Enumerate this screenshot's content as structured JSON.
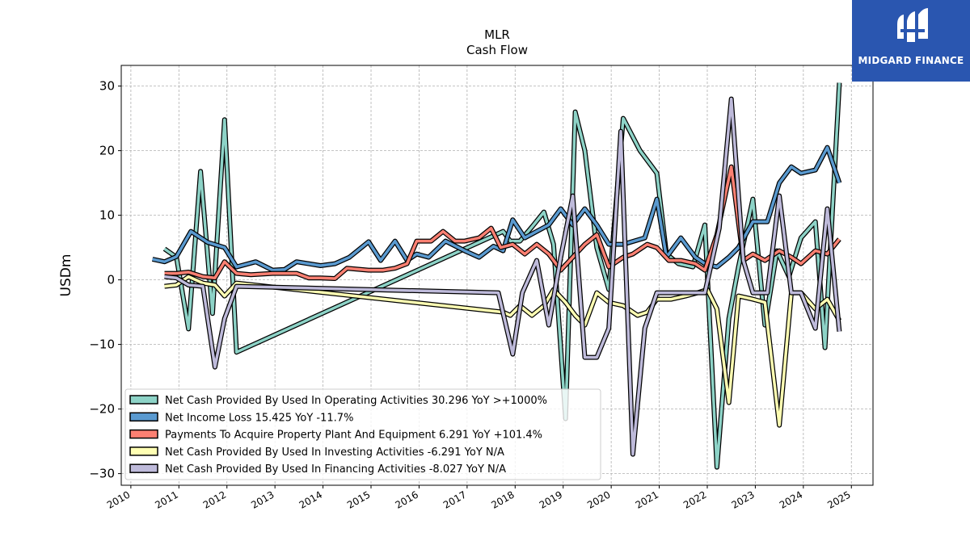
{
  "brand": {
    "name": "MIDGARD FINANCE",
    "logo_icon": "midgard-logo-icon",
    "color": "#2a56b0"
  },
  "chart_data": {
    "type": "line",
    "title": "MLR",
    "subtitle": "Cash Flow",
    "xlabel": "",
    "ylabel": "USDm",
    "xlim": [
      2009.8,
      2025.45
    ],
    "ylim": [
      -31.8,
      33.2
    ],
    "xticks": [
      "2010",
      "2011",
      "2012",
      "2013",
      "2014",
      "2015",
      "2016",
      "2017",
      "2018",
      "2019",
      "2020",
      "2021",
      "2022",
      "2023",
      "2024",
      "2025"
    ],
    "yticks": [
      30,
      20,
      10,
      0,
      -10,
      -20,
      -30
    ],
    "ytick_labels": [
      "30",
      "20",
      "10",
      "0",
      "−10",
      "−20",
      "−30"
    ],
    "grid": true,
    "legend_position": "lower-left",
    "series": [
      {
        "name": "Net Cash Provided By Used In Operating Activities",
        "legend_label": "Net Cash Provided By Used In Operating Activities  30.296 YoY >+1000%",
        "color": "#8dd3c7",
        "points": [
          [
            2010.7,
            4.8
          ],
          [
            2010.95,
            3.5
          ],
          [
            2011.2,
            -7.6
          ],
          [
            2011.45,
            16.8
          ],
          [
            2011.7,
            -5.2
          ],
          [
            2011.95,
            24.8
          ],
          [
            2012.2,
            -11.2
          ],
          [
            2017.75,
            7.5
          ],
          [
            2017.9,
            6.0
          ],
          [
            2018.1,
            6.0
          ],
          [
            2018.35,
            8.2
          ],
          [
            2018.6,
            10.5
          ],
          [
            2018.8,
            5.5
          ],
          [
            2019.05,
            -21.5
          ],
          [
            2019.25,
            26.0
          ],
          [
            2019.45,
            20.0
          ],
          [
            2019.7,
            5.0
          ],
          [
            2019.95,
            -1.5
          ],
          [
            2020.25,
            25.0
          ],
          [
            2020.6,
            20.0
          ],
          [
            2020.95,
            16.5
          ],
          [
            2021.15,
            4.0
          ],
          [
            2021.4,
            2.5
          ],
          [
            2021.7,
            2.0
          ],
          [
            2021.95,
            8.5
          ],
          [
            2022.2,
            -29.0
          ],
          [
            2022.45,
            -6.0
          ],
          [
            2022.65,
            2.0
          ],
          [
            2022.95,
            12.5
          ],
          [
            2023.2,
            -7.0
          ],
          [
            2023.45,
            4.5
          ],
          [
            2023.7,
            0.5
          ],
          [
            2023.95,
            6.5
          ],
          [
            2024.25,
            9.0
          ],
          [
            2024.45,
            -10.5
          ],
          [
            2024.75,
            30.5
          ]
        ]
      },
      {
        "name": "Net Income Loss",
        "legend_label": "Net Income Loss  15.425 YoY -11.7%",
        "color": "#5a9ad0",
        "points": [
          [
            2010.45,
            3.2
          ],
          [
            2010.7,
            2.8
          ],
          [
            2010.95,
            3.6
          ],
          [
            2011.25,
            7.5
          ],
          [
            2011.6,
            5.8
          ],
          [
            2011.95,
            5.0
          ],
          [
            2012.2,
            2.0
          ],
          [
            2012.6,
            2.8
          ],
          [
            2012.95,
            1.5
          ],
          [
            2013.2,
            1.6
          ],
          [
            2013.45,
            2.8
          ],
          [
            2013.7,
            2.5
          ],
          [
            2013.95,
            2.2
          ],
          [
            2014.25,
            2.5
          ],
          [
            2014.55,
            3.5
          ],
          [
            2014.95,
            5.9
          ],
          [
            2015.2,
            3.0
          ],
          [
            2015.5,
            6.0
          ],
          [
            2015.75,
            3.0
          ],
          [
            2015.95,
            4.0
          ],
          [
            2016.2,
            3.5
          ],
          [
            2016.55,
            6.0
          ],
          [
            2016.95,
            4.5
          ],
          [
            2017.25,
            3.5
          ],
          [
            2017.55,
            5.2
          ],
          [
            2017.75,
            4.5
          ],
          [
            2017.95,
            9.3
          ],
          [
            2018.2,
            6.5
          ],
          [
            2018.45,
            7.5
          ],
          [
            2018.7,
            8.5
          ],
          [
            2018.95,
            11.0
          ],
          [
            2019.2,
            8.5
          ],
          [
            2019.45,
            11.0
          ],
          [
            2019.7,
            8.5
          ],
          [
            2019.95,
            5.5
          ],
          [
            2020.25,
            5.5
          ],
          [
            2020.7,
            6.5
          ],
          [
            2020.95,
            12.5
          ],
          [
            2021.15,
            3.5
          ],
          [
            2021.45,
            6.5
          ],
          [
            2021.75,
            3.5
          ],
          [
            2021.95,
            2.5
          ],
          [
            2022.2,
            2.0
          ],
          [
            2022.45,
            3.5
          ],
          [
            2022.65,
            5.0
          ],
          [
            2022.95,
            9.0
          ],
          [
            2023.25,
            9.0
          ],
          [
            2023.5,
            15.0
          ],
          [
            2023.75,
            17.5
          ],
          [
            2023.95,
            16.5
          ],
          [
            2024.25,
            17.0
          ],
          [
            2024.5,
            20.5
          ],
          [
            2024.75,
            15.0
          ]
        ]
      },
      {
        "name": "Payments To Acquire Property Plant And Equipment",
        "legend_label": "Payments To Acquire Property Plant And Equipment  6.291 YoY +101.4%",
        "color": "#fb8072",
        "points": [
          [
            2010.7,
            1.0
          ],
          [
            2010.95,
            1.0
          ],
          [
            2011.2,
            1.2
          ],
          [
            2011.5,
            0.5
          ],
          [
            2011.75,
            0.3
          ],
          [
            2011.95,
            2.8
          ],
          [
            2012.2,
            1.0
          ],
          [
            2012.5,
            0.8
          ],
          [
            2012.95,
            1.0
          ],
          [
            2013.45,
            1.0
          ],
          [
            2013.7,
            0.3
          ],
          [
            2013.95,
            0.3
          ],
          [
            2014.25,
            0.2
          ],
          [
            2014.5,
            1.8
          ],
          [
            2014.95,
            1.5
          ],
          [
            2015.25,
            1.5
          ],
          [
            2015.5,
            1.8
          ],
          [
            2015.75,
            2.5
          ],
          [
            2015.95,
            6.0
          ],
          [
            2016.25,
            6.0
          ],
          [
            2016.5,
            7.5
          ],
          [
            2016.75,
            6.0
          ],
          [
            2016.95,
            6.0
          ],
          [
            2017.25,
            6.5
          ],
          [
            2017.5,
            8.0
          ],
          [
            2017.7,
            5.0
          ],
          [
            2017.95,
            5.5
          ],
          [
            2018.2,
            4.0
          ],
          [
            2018.45,
            5.5
          ],
          [
            2018.7,
            4.0
          ],
          [
            2018.95,
            1.5
          ],
          [
            2019.2,
            3.5
          ],
          [
            2019.45,
            5.5
          ],
          [
            2019.7,
            7.0
          ],
          [
            2019.95,
            2.0
          ],
          [
            2020.25,
            3.5
          ],
          [
            2020.45,
            4.0
          ],
          [
            2020.75,
            5.5
          ],
          [
            2020.95,
            5.0
          ],
          [
            2021.2,
            3.0
          ],
          [
            2021.45,
            3.0
          ],
          [
            2021.75,
            2.5
          ],
          [
            2021.95,
            1.5
          ],
          [
            2022.2,
            7.0
          ],
          [
            2022.5,
            17.5
          ],
          [
            2022.75,
            3.0
          ],
          [
            2022.95,
            4.0
          ],
          [
            2023.2,
            3.0
          ],
          [
            2023.5,
            4.5
          ],
          [
            2023.75,
            3.5
          ],
          [
            2023.95,
            2.5
          ],
          [
            2024.25,
            4.5
          ],
          [
            2024.5,
            4.0
          ],
          [
            2024.75,
            6.3
          ]
        ]
      },
      {
        "name": "Net Cash Provided By Used In Investing Activities",
        "legend_label": "Net Cash Provided By Used In Investing Activities  -6.291 YoY N/A",
        "color": "#ffffb3",
        "points": [
          [
            2010.7,
            -1.0
          ],
          [
            2010.95,
            -0.8
          ],
          [
            2011.2,
            0.5
          ],
          [
            2011.5,
            -0.5
          ],
          [
            2011.75,
            -0.8
          ],
          [
            2011.95,
            -2.5
          ],
          [
            2012.2,
            -0.5
          ],
          [
            2017.75,
            -5.0
          ],
          [
            2017.9,
            -5.5
          ],
          [
            2018.1,
            -4.0
          ],
          [
            2018.35,
            -5.5
          ],
          [
            2018.6,
            -4.0
          ],
          [
            2018.8,
            -1.5
          ],
          [
            2019.05,
            -3.5
          ],
          [
            2019.25,
            -5.5
          ],
          [
            2019.45,
            -7.0
          ],
          [
            2019.7,
            -2.0
          ],
          [
            2019.95,
            -3.5
          ],
          [
            2020.25,
            -4.0
          ],
          [
            2020.55,
            -5.5
          ],
          [
            2020.75,
            -5.0
          ],
          [
            2020.95,
            -3.0
          ],
          [
            2021.25,
            -3.0
          ],
          [
            2021.55,
            -2.5
          ],
          [
            2021.8,
            -2.0
          ],
          [
            2022.0,
            -1.5
          ],
          [
            2022.2,
            -4.5
          ],
          [
            2022.45,
            -19.0
          ],
          [
            2022.65,
            -2.5
          ],
          [
            2022.95,
            -3.0
          ],
          [
            2023.2,
            -3.5
          ],
          [
            2023.5,
            -22.5
          ],
          [
            2023.75,
            -2.0
          ],
          [
            2023.95,
            -2.0
          ],
          [
            2024.25,
            -4.5
          ],
          [
            2024.5,
            -3.0
          ],
          [
            2024.75,
            -6.3
          ]
        ]
      },
      {
        "name": "Net Cash Provided By Used In Financing Activities",
        "legend_label": "Net Cash Provided By Used In Financing Activities  -8.027 YoY N/A",
        "color": "#bebada",
        "points": [
          [
            2010.7,
            0.5
          ],
          [
            2010.95,
            0.3
          ],
          [
            2011.2,
            -0.8
          ],
          [
            2011.5,
            -1.0
          ],
          [
            2011.75,
            -13.5
          ],
          [
            2011.95,
            -6.0
          ],
          [
            2012.2,
            -1.0
          ],
          [
            2017.65,
            -2.0
          ],
          [
            2017.95,
            -11.5
          ],
          [
            2018.15,
            -2.0
          ],
          [
            2018.45,
            3.0
          ],
          [
            2018.7,
            -7.0
          ],
          [
            2018.95,
            3.5
          ],
          [
            2019.2,
            13.0
          ],
          [
            2019.45,
            -12.0
          ],
          [
            2019.7,
            -12.0
          ],
          [
            2019.95,
            -7.5
          ],
          [
            2020.2,
            23.0
          ],
          [
            2020.45,
            -27.0
          ],
          [
            2020.7,
            -7.5
          ],
          [
            2020.95,
            -2.0
          ],
          [
            2021.25,
            -2.0
          ],
          [
            2021.75,
            -2.0
          ],
          [
            2021.95,
            -2.0
          ],
          [
            2022.25,
            8.0
          ],
          [
            2022.5,
            28.0
          ],
          [
            2022.75,
            3.0
          ],
          [
            2022.95,
            -2.0
          ],
          [
            2023.25,
            -2.0
          ],
          [
            2023.5,
            13.0
          ],
          [
            2023.75,
            -2.0
          ],
          [
            2023.95,
            -2.0
          ],
          [
            2024.25,
            -7.5
          ],
          [
            2024.5,
            11.0
          ],
          [
            2024.75,
            -8.0
          ]
        ]
      }
    ]
  }
}
